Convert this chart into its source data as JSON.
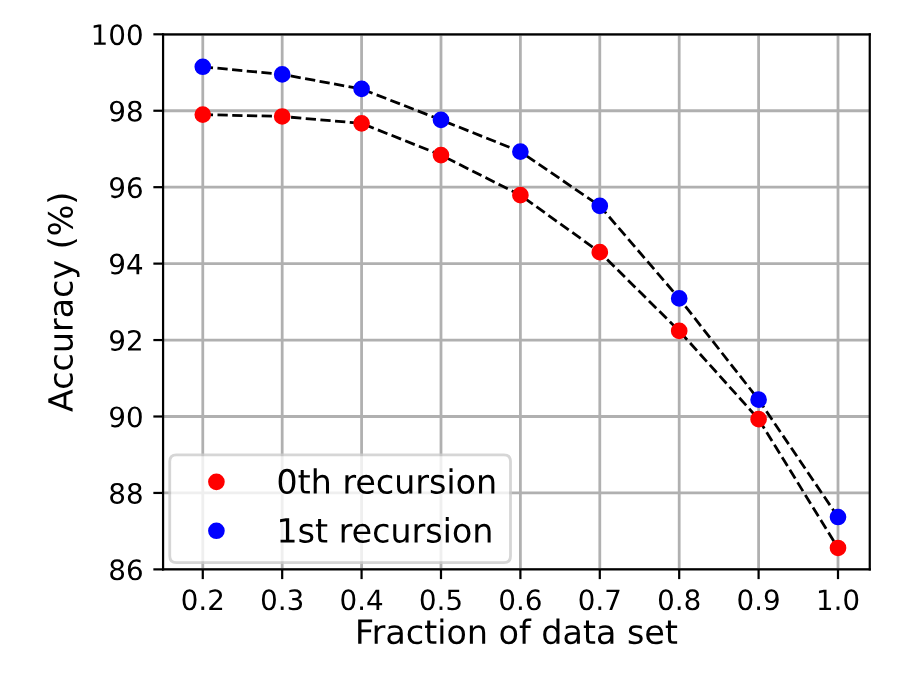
{
  "chart_data": {
    "type": "scatter",
    "xlabel": "Fraction of data set",
    "ylabel": "Accuracy (%)",
    "x": [
      0.2,
      0.3,
      0.4,
      0.5,
      0.6,
      0.7,
      0.8,
      0.9,
      1.0
    ],
    "series": [
      {
        "type": "line",
        "color": "#000000",
        "line_style": "dashed",
        "marker": "none",
        "values": [
          97.9,
          97.85,
          97.67,
          96.84,
          95.79,
          94.3,
          92.24,
          89.93,
          86.56
        ]
      },
      {
        "type": "line",
        "color": "#000000",
        "line_style": "dashed",
        "marker": "none",
        "values": [
          99.15,
          98.95,
          98.57,
          97.76,
          96.93,
          95.51,
          93.09,
          90.44,
          87.37
        ]
      },
      {
        "name": "0th recursion",
        "color": "#ff0000",
        "marker": "circle",
        "values": [
          97.9,
          97.85,
          97.67,
          96.84,
          95.79,
          94.3,
          92.24,
          89.93,
          86.56
        ]
      },
      {
        "name": "1st recursion",
        "color": "#0000ff",
        "marker": "circle",
        "values": [
          99.15,
          98.95,
          98.57,
          97.76,
          96.93,
          95.51,
          93.09,
          90.44,
          87.37
        ]
      }
    ],
    "xlim": [
      0.15,
      1.04
    ],
    "xticks": [
      {
        "value": 0.2,
        "label": "0.2"
      },
      {
        "value": 0.3,
        "label": "0.3"
      },
      {
        "value": 0.4,
        "label": "0.4"
      },
      {
        "value": 0.5,
        "label": "0.5"
      },
      {
        "value": 0.6,
        "label": "0.6"
      },
      {
        "value": 0.7,
        "label": "0.7"
      },
      {
        "value": 0.8,
        "label": "0.8"
      },
      {
        "value": 0.9,
        "label": "0.9"
      },
      {
        "value": 1.0,
        "label": "1.0"
      }
    ],
    "ylim": [
      86,
      100
    ],
    "yticks": [
      86,
      88,
      90,
      92,
      94,
      96,
      98,
      100
    ],
    "grid": true,
    "legend": "bottom left"
  }
}
